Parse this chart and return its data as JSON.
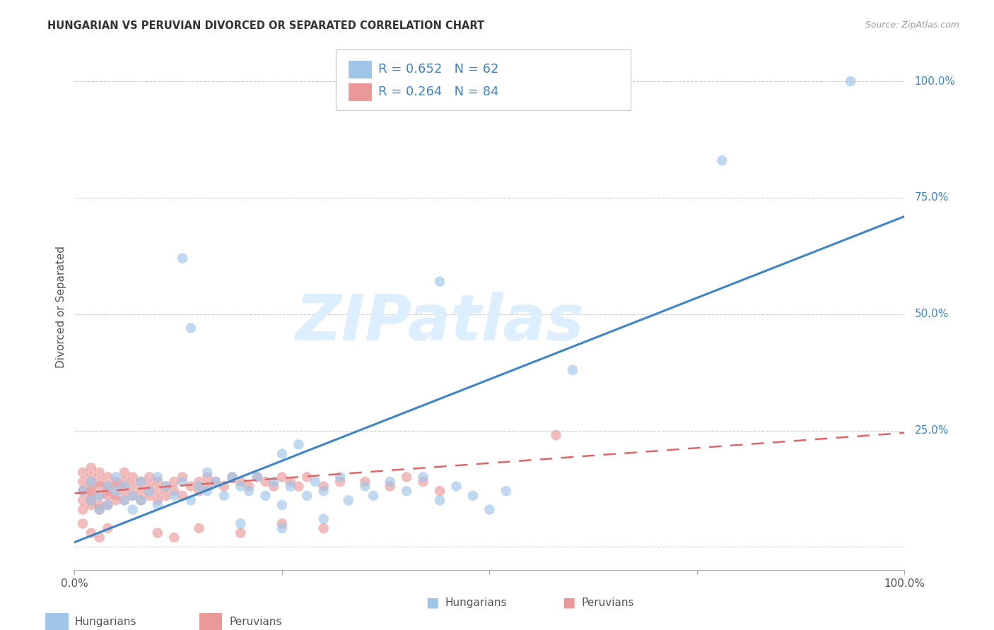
{
  "title": "HUNGARIAN VS PERUVIAN DIVORCED OR SEPARATED CORRELATION CHART",
  "source": "Source: ZipAtlas.com",
  "ylabel": "Divorced or Separated",
  "legend_label_blue": "Hungarians",
  "legend_label_pink": "Peruvians",
  "blue_scatter_color": "#9fc5e8",
  "pink_scatter_color": "#ea9999",
  "blue_line_color": "#3d85c8",
  "pink_line_color": "#e06666",
  "legend_text_color": "#3d85c8",
  "right_tick_color": "#3d85c8",
  "bg_color": "#ffffff",
  "grid_color": "#c0c0c0",
  "watermark_text": "ZIPatlas",
  "watermark_color": "#ddeeff",
  "blue_R": "0.652",
  "blue_N": "62",
  "pink_R": "0.264",
  "pink_N": "84",
  "blue_slope": 0.7,
  "blue_intercept": 0.01,
  "pink_slope": 0.13,
  "pink_intercept": 0.115,
  "xlim": [
    0.0,
    1.0
  ],
  "ylim": [
    -0.05,
    1.08
  ],
  "scatter_size": 110,
  "scatter_alpha": 0.65
}
